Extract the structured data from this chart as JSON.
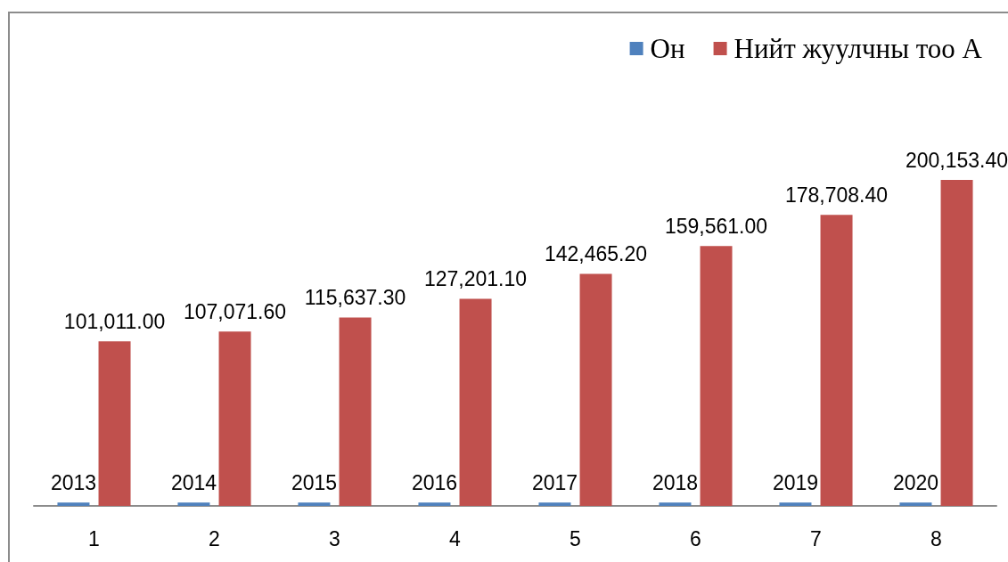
{
  "chart_data": {
    "type": "bar",
    "categories": [
      "1",
      "2",
      "3",
      "4",
      "5",
      "6",
      "7",
      "8"
    ],
    "series": [
      {
        "name": "Он",
        "color": "#4f81bd",
        "values": [
          2013,
          2014,
          2015,
          2016,
          2017,
          2018,
          2019,
          2020
        ],
        "value_labels": [
          "2013",
          "2014",
          "2015",
          "2016",
          "2017",
          "2018",
          "2019",
          "2020"
        ]
      },
      {
        "name": "Нийт жуулчны тоо А",
        "color": "#c0504d",
        "values": [
          101011.0,
          107071.6,
          115637.3,
          127201.1,
          142465.2,
          159561.0,
          178708.4,
          200153.4
        ],
        "value_labels": [
          "101,011.00",
          "107,071.60",
          "115,637.30",
          "127,201.10",
          "142,465.20",
          "159,561.00",
          "178,708.40",
          "200,153.40"
        ]
      }
    ],
    "legend": "top right",
    "tick_labels": "x",
    "grid": false
  }
}
